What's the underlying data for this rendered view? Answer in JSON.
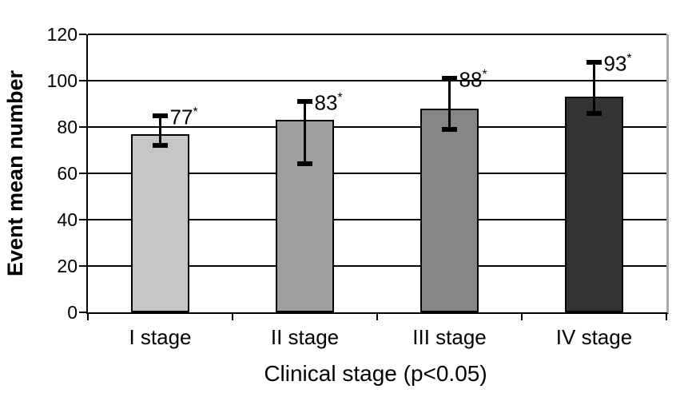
{
  "figure": {
    "background_color": "#ffffff",
    "gridline_color": "#000000",
    "axis_color": "#000000",
    "plot_right_border_color": "#a9a9a9",
    "error_bar_color": "#000000"
  },
  "chart_data": {
    "type": "bar",
    "title": "",
    "xlabel": "Clinical stage (p<0.05)",
    "ylabel": "Event mean number",
    "categories": [
      "I stage",
      "II stage",
      "III stage",
      "IV stage"
    ],
    "values": [
      77,
      83,
      88,
      93
    ],
    "value_marker": "*",
    "error_low": [
      72,
      64,
      79,
      86
    ],
    "error_high": [
      85,
      91,
      101,
      108
    ],
    "ylim": [
      0,
      120
    ],
    "yticks": [
      0,
      20,
      40,
      60,
      80,
      100,
      120
    ],
    "grid": true,
    "legend": false,
    "bar_colors": [
      "#c6c6c6",
      "#9e9e9e",
      "#868686",
      "#333333"
    ],
    "bar_border_color": "#000000"
  }
}
